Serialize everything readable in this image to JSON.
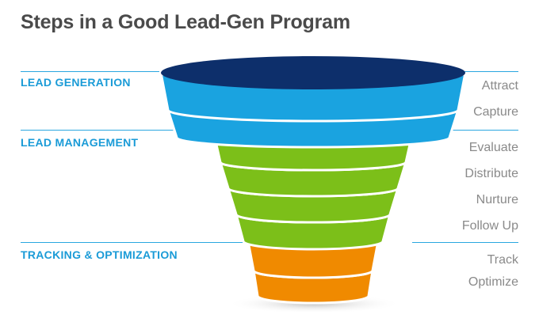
{
  "title": "Steps in a Good Lead-Gen Program",
  "colors": {
    "section_text": "#1a9bd7",
    "rule": "#2aa7e0",
    "step_text": "#8a8a8a",
    "rim": "#0d2f6b",
    "blue": "#1aa3e0",
    "green": "#7cbf19",
    "orange": "#f08a00"
  },
  "sections": [
    {
      "label": "LEAD GENERATION"
    },
    {
      "label": "LEAD MANAGEMENT"
    },
    {
      "label": "TRACKING & OPTIMIZATION"
    }
  ],
  "steps": [
    {
      "label": "Attract",
      "color": "blue"
    },
    {
      "label": "Capture",
      "color": "blue"
    },
    {
      "label": "Evaluate",
      "color": "green"
    },
    {
      "label": "Distribute",
      "color": "green"
    },
    {
      "label": "Nurture",
      "color": "green"
    },
    {
      "label": "Follow Up",
      "color": "green"
    },
    {
      "label": "Track",
      "color": "orange"
    },
    {
      "label": "Optimize",
      "color": "orange"
    }
  ]
}
